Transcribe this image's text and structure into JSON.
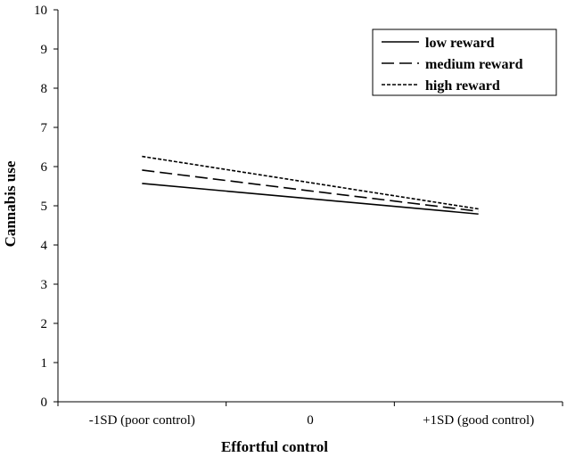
{
  "chart_data": {
    "type": "line",
    "categories": [
      "-1SD (poor control)",
      "0",
      "+1SD (good control)"
    ],
    "series": [
      {
        "name": "low reward",
        "values": [
          5.57,
          5.18,
          4.79
        ],
        "style": "solid"
      },
      {
        "name": "medium reward",
        "values": [
          5.91,
          5.38,
          4.86
        ],
        "style": "dashed"
      },
      {
        "name": "high reward",
        "values": [
          6.26,
          5.59,
          4.92
        ],
        "style": "dotted"
      }
    ],
    "title": "",
    "xlabel": "Effortful control",
    "ylabel": "Cannabis use",
    "ylim": [
      0,
      10
    ],
    "yticks": [
      "0",
      "1",
      "2",
      "3",
      "4",
      "5",
      "6",
      "7",
      "8",
      "9",
      "10"
    ],
    "grid": false,
    "legend": "top-right",
    "line_color": "#000000"
  }
}
